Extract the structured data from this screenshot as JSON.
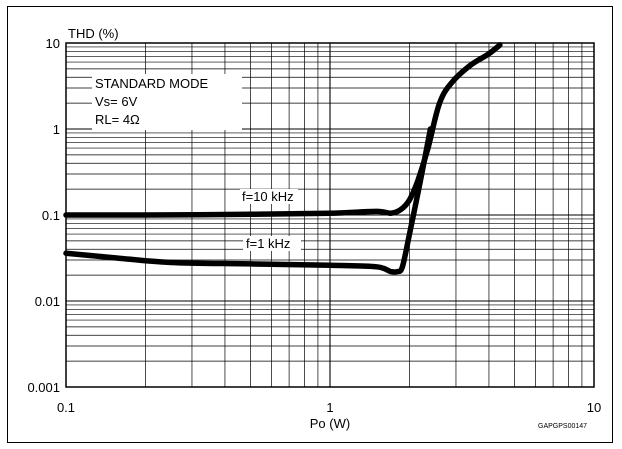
{
  "chart_data": {
    "type": "line",
    "title": "",
    "ylabel": "THD (%)",
    "xlabel": "Po (W)",
    "x_scale": "log",
    "y_scale": "log",
    "xlim": [
      0.1,
      10
    ],
    "ylim": [
      0.001,
      10
    ],
    "grid": true,
    "x_ticks": [
      "0.1",
      "1",
      "10"
    ],
    "y_ticks": [
      "10",
      "1",
      "0.1",
      "0.01",
      "0.001"
    ],
    "conditions": [
      "STANDARD MODE",
      "Vs= 6V",
      "RL= 4Ω"
    ],
    "figure_code": "GAPGPS00147",
    "series": [
      {
        "name": "f=10 kHz",
        "x": [
          0.1,
          0.2,
          0.5,
          1.0,
          1.5,
          1.7,
          1.85,
          2.0,
          2.15,
          2.35,
          2.6,
          2.9,
          3.4,
          4.0,
          4.4
        ],
        "y": [
          0.1,
          0.1,
          0.102,
          0.105,
          0.11,
          0.105,
          0.115,
          0.15,
          0.25,
          0.6,
          2.0,
          3.5,
          5.5,
          7.5,
          9.5
        ]
      },
      {
        "name": "f=1 kHz",
        "x": [
          0.1,
          0.15,
          0.25,
          0.5,
          1.0,
          1.5,
          1.7,
          1.8,
          1.88,
          2.0,
          2.2,
          2.4
        ],
        "y": [
          0.036,
          0.032,
          0.028,
          0.027,
          0.026,
          0.025,
          0.022,
          0.022,
          0.025,
          0.06,
          0.25,
          1.0
        ]
      }
    ]
  }
}
